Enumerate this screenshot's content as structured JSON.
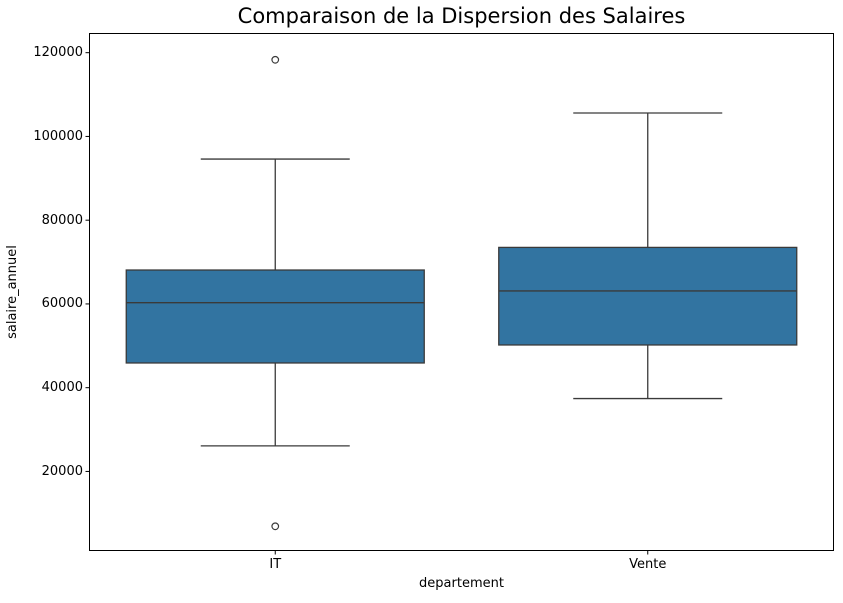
{
  "colors": {
    "background": "#ffffff",
    "spine": "#000000",
    "text": "#000000",
    "box_fill": "#3274a1",
    "box_line": "#3a3a3a"
  },
  "chart_data": {
    "type": "boxplot",
    "title": "Comparaison de la Dispersion des Salaires",
    "xlabel": "departement",
    "ylabel": "salaire_annuel",
    "categories": [
      "IT",
      "Vente"
    ],
    "ylim": [
      1000,
      124700
    ],
    "yticks": [
      20000,
      40000,
      60000,
      80000,
      100000,
      120000
    ],
    "grid": false,
    "legend": null,
    "box_width_frac": 0.4,
    "cap_width_frac": 0.2,
    "series": [
      {
        "name": "IT",
        "whisker_low": 26100,
        "q1": 45900,
        "median": 60300,
        "q3": 68100,
        "whisker_high": 94600,
        "outliers": [
          6900,
          118300
        ]
      },
      {
        "name": "Vente",
        "whisker_low": 37400,
        "q1": 50200,
        "median": 63100,
        "q3": 73500,
        "whisker_high": 105600,
        "outliers": []
      }
    ]
  }
}
